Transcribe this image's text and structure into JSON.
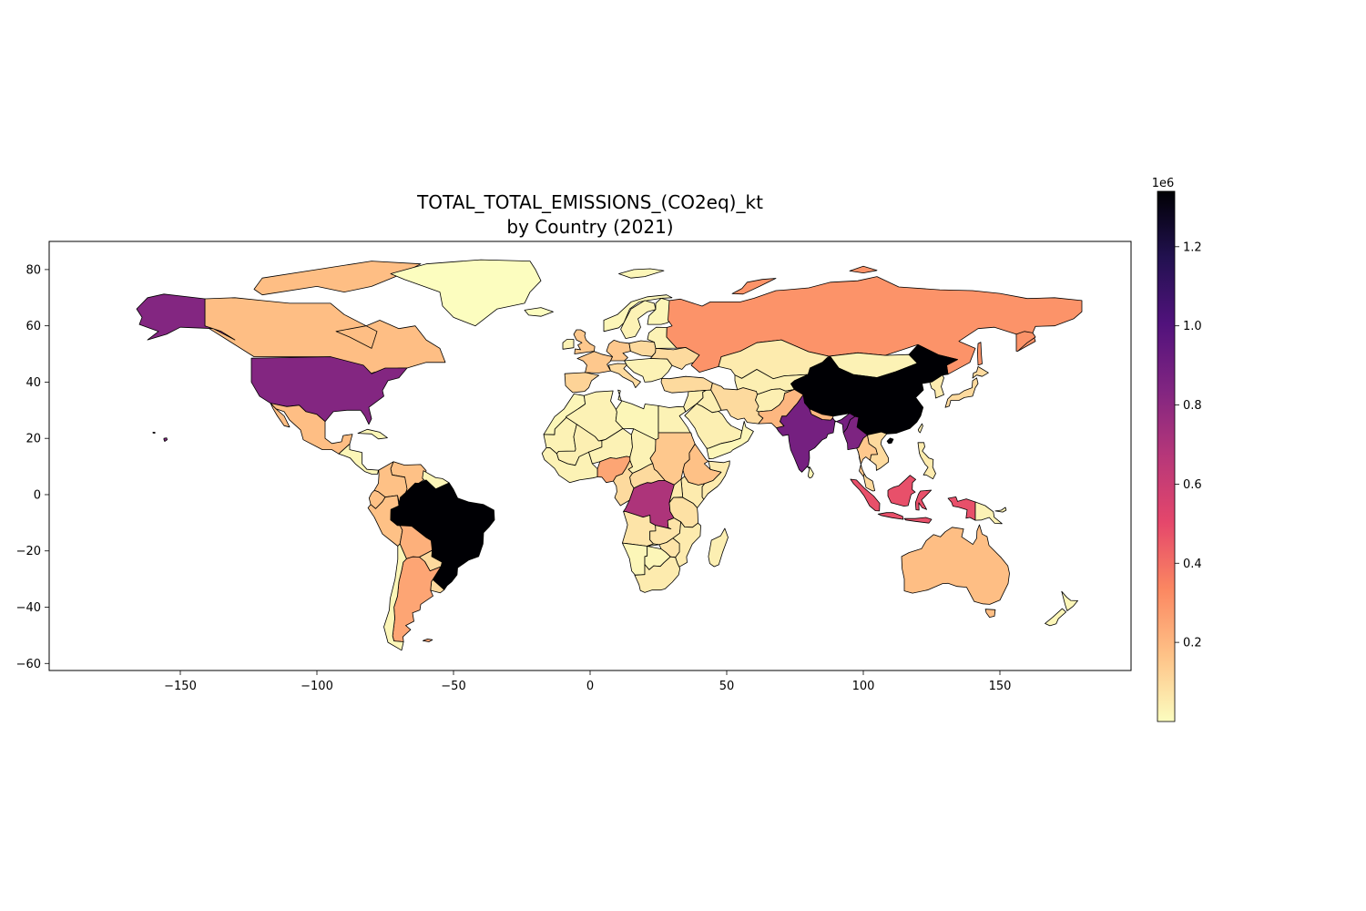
{
  "chart_data": {
    "type": "choropleth",
    "title_line1": "TOTAL_TOTAL_EMISSIONS_(CO2eq)_kt",
    "title_line2": "by Country (2021)",
    "x_axis": {
      "ticks": [
        -150,
        -100,
        -50,
        0,
        50,
        100,
        150
      ],
      "tick_labels": [
        "−150",
        "−100",
        "−50",
        "0",
        "50",
        "100",
        "150"
      ],
      "range": [
        -198,
        198
      ]
    },
    "y_axis": {
      "ticks": [
        -60,
        -40,
        -20,
        0,
        20,
        40,
        60,
        80
      ],
      "tick_labels": [
        "−60",
        "−40",
        "−20",
        "0",
        "20",
        "40",
        "60",
        "80"
      ],
      "range": [
        -62.5,
        90
      ]
    },
    "colorbar": {
      "colormap": "magma_r",
      "offset_label": "1e6",
      "min": 0.0,
      "max": 1.34,
      "ticks": [
        0.2,
        0.4,
        0.6,
        0.8,
        1.0,
        1.2
      ],
      "tick_labels": [
        "0.2",
        "0.4",
        "0.6",
        "0.8",
        "1.0",
        "1.2"
      ],
      "stops": [
        "#fcfdbf",
        "#fec287",
        "#fb8761",
        "#e5476b",
        "#b73779",
        "#812581",
        "#51127c",
        "#221150",
        "#000004"
      ]
    },
    "regions": [
      {
        "name": "Canada",
        "value": 0.18
      },
      {
        "name": "United States",
        "value": 0.83
      },
      {
        "name": "Alaska",
        "value": 0.83
      },
      {
        "name": "Mexico",
        "value": 0.18
      },
      {
        "name": "Central America",
        "value": 0.02
      },
      {
        "name": "Cuba",
        "value": 0.02
      },
      {
        "name": "Venezuela",
        "value": 0.17
      },
      {
        "name": "Colombia",
        "value": 0.17
      },
      {
        "name": "Guyana",
        "value": 0.02
      },
      {
        "name": "Peru",
        "value": 0.17
      },
      {
        "name": "Brazil",
        "value": 1.34
      },
      {
        "name": "Bolivia",
        "value": 0.22
      },
      {
        "name": "Paraguay",
        "value": 0.1
      },
      {
        "name": "Argentina",
        "value": 0.25
      },
      {
        "name": "Chile",
        "value": 0.02
      },
      {
        "name": "Greenland",
        "value": 0.0
      },
      {
        "name": "Iceland",
        "value": 0.0
      },
      {
        "name": "Norway",
        "value": 0.02
      },
      {
        "name": "Sweden",
        "value": 0.03
      },
      {
        "name": "Finland",
        "value": 0.02
      },
      {
        "name": "United Kingdom",
        "value": 0.15
      },
      {
        "name": "Ireland",
        "value": 0.03
      },
      {
        "name": "France",
        "value": 0.15
      },
      {
        "name": "Spain",
        "value": 0.12
      },
      {
        "name": "Germany",
        "value": 0.15
      },
      {
        "name": "Poland",
        "value": 0.1
      },
      {
        "name": "Italy",
        "value": 0.1
      },
      {
        "name": "Ukraine",
        "value": 0.1
      },
      {
        "name": "Eastern Europe",
        "value": 0.03
      },
      {
        "name": "Turkey",
        "value": 0.1
      },
      {
        "name": "Russia",
        "value": 0.3
      },
      {
        "name": "Kazakhstan",
        "value": 0.05
      },
      {
        "name": "Central Asia",
        "value": 0.04
      },
      {
        "name": "Mongolia",
        "value": 0.03
      },
      {
        "name": "China",
        "value": 1.34
      },
      {
        "name": "Japan",
        "value": 0.1
      },
      {
        "name": "Korea",
        "value": 0.05
      },
      {
        "name": "Iran",
        "value": 0.1
      },
      {
        "name": "Iraq",
        "value": 0.04
      },
      {
        "name": "Saudi Arabia",
        "value": 0.04
      },
      {
        "name": "Yemen",
        "value": 0.02
      },
      {
        "name": "Afghanistan",
        "value": 0.04
      },
      {
        "name": "Pakistan",
        "value": 0.2
      },
      {
        "name": "India",
        "value": 0.88
      },
      {
        "name": "Myanmar",
        "value": 0.85
      },
      {
        "name": "Thailand",
        "value": 0.15
      },
      {
        "name": "Vietnam",
        "value": 0.1
      },
      {
        "name": "Philippines",
        "value": 0.05
      },
      {
        "name": "Indonesia",
        "value": 0.48
      },
      {
        "name": "Papua New Guinea",
        "value": 0.03
      },
      {
        "name": "Australia",
        "value": 0.18
      },
      {
        "name": "New Zealand",
        "value": 0.02
      },
      {
        "name": "Morocco",
        "value": 0.02
      },
      {
        "name": "Algeria",
        "value": 0.03
      },
      {
        "name": "Libya",
        "value": 0.02
      },
      {
        "name": "Egypt",
        "value": 0.03
      },
      {
        "name": "West Africa",
        "value": 0.03
      },
      {
        "name": "Mali",
        "value": 0.04
      },
      {
        "name": "Niger",
        "value": 0.03
      },
      {
        "name": "Nigeria",
        "value": 0.25
      },
      {
        "name": "Chad",
        "value": 0.03
      },
      {
        "name": "Sudan",
        "value": 0.15
      },
      {
        "name": "Ethiopia",
        "value": 0.17
      },
      {
        "name": "Somalia",
        "value": 0.05
      },
      {
        "name": "Central African Republic",
        "value": 0.1
      },
      {
        "name": "Cameroon",
        "value": 0.1
      },
      {
        "name": "DR Congo",
        "value": 0.7
      },
      {
        "name": "Kenya",
        "value": 0.05
      },
      {
        "name": "Tanzania",
        "value": 0.08
      },
      {
        "name": "Angola",
        "value": 0.07
      },
      {
        "name": "Zambia",
        "value": 0.07
      },
      {
        "name": "Mozambique",
        "value": 0.05
      },
      {
        "name": "Namibia",
        "value": 0.02
      },
      {
        "name": "Botswana",
        "value": 0.02
      },
      {
        "name": "South Africa",
        "value": 0.05
      },
      {
        "name": "Madagascar",
        "value": 0.04
      }
    ]
  }
}
